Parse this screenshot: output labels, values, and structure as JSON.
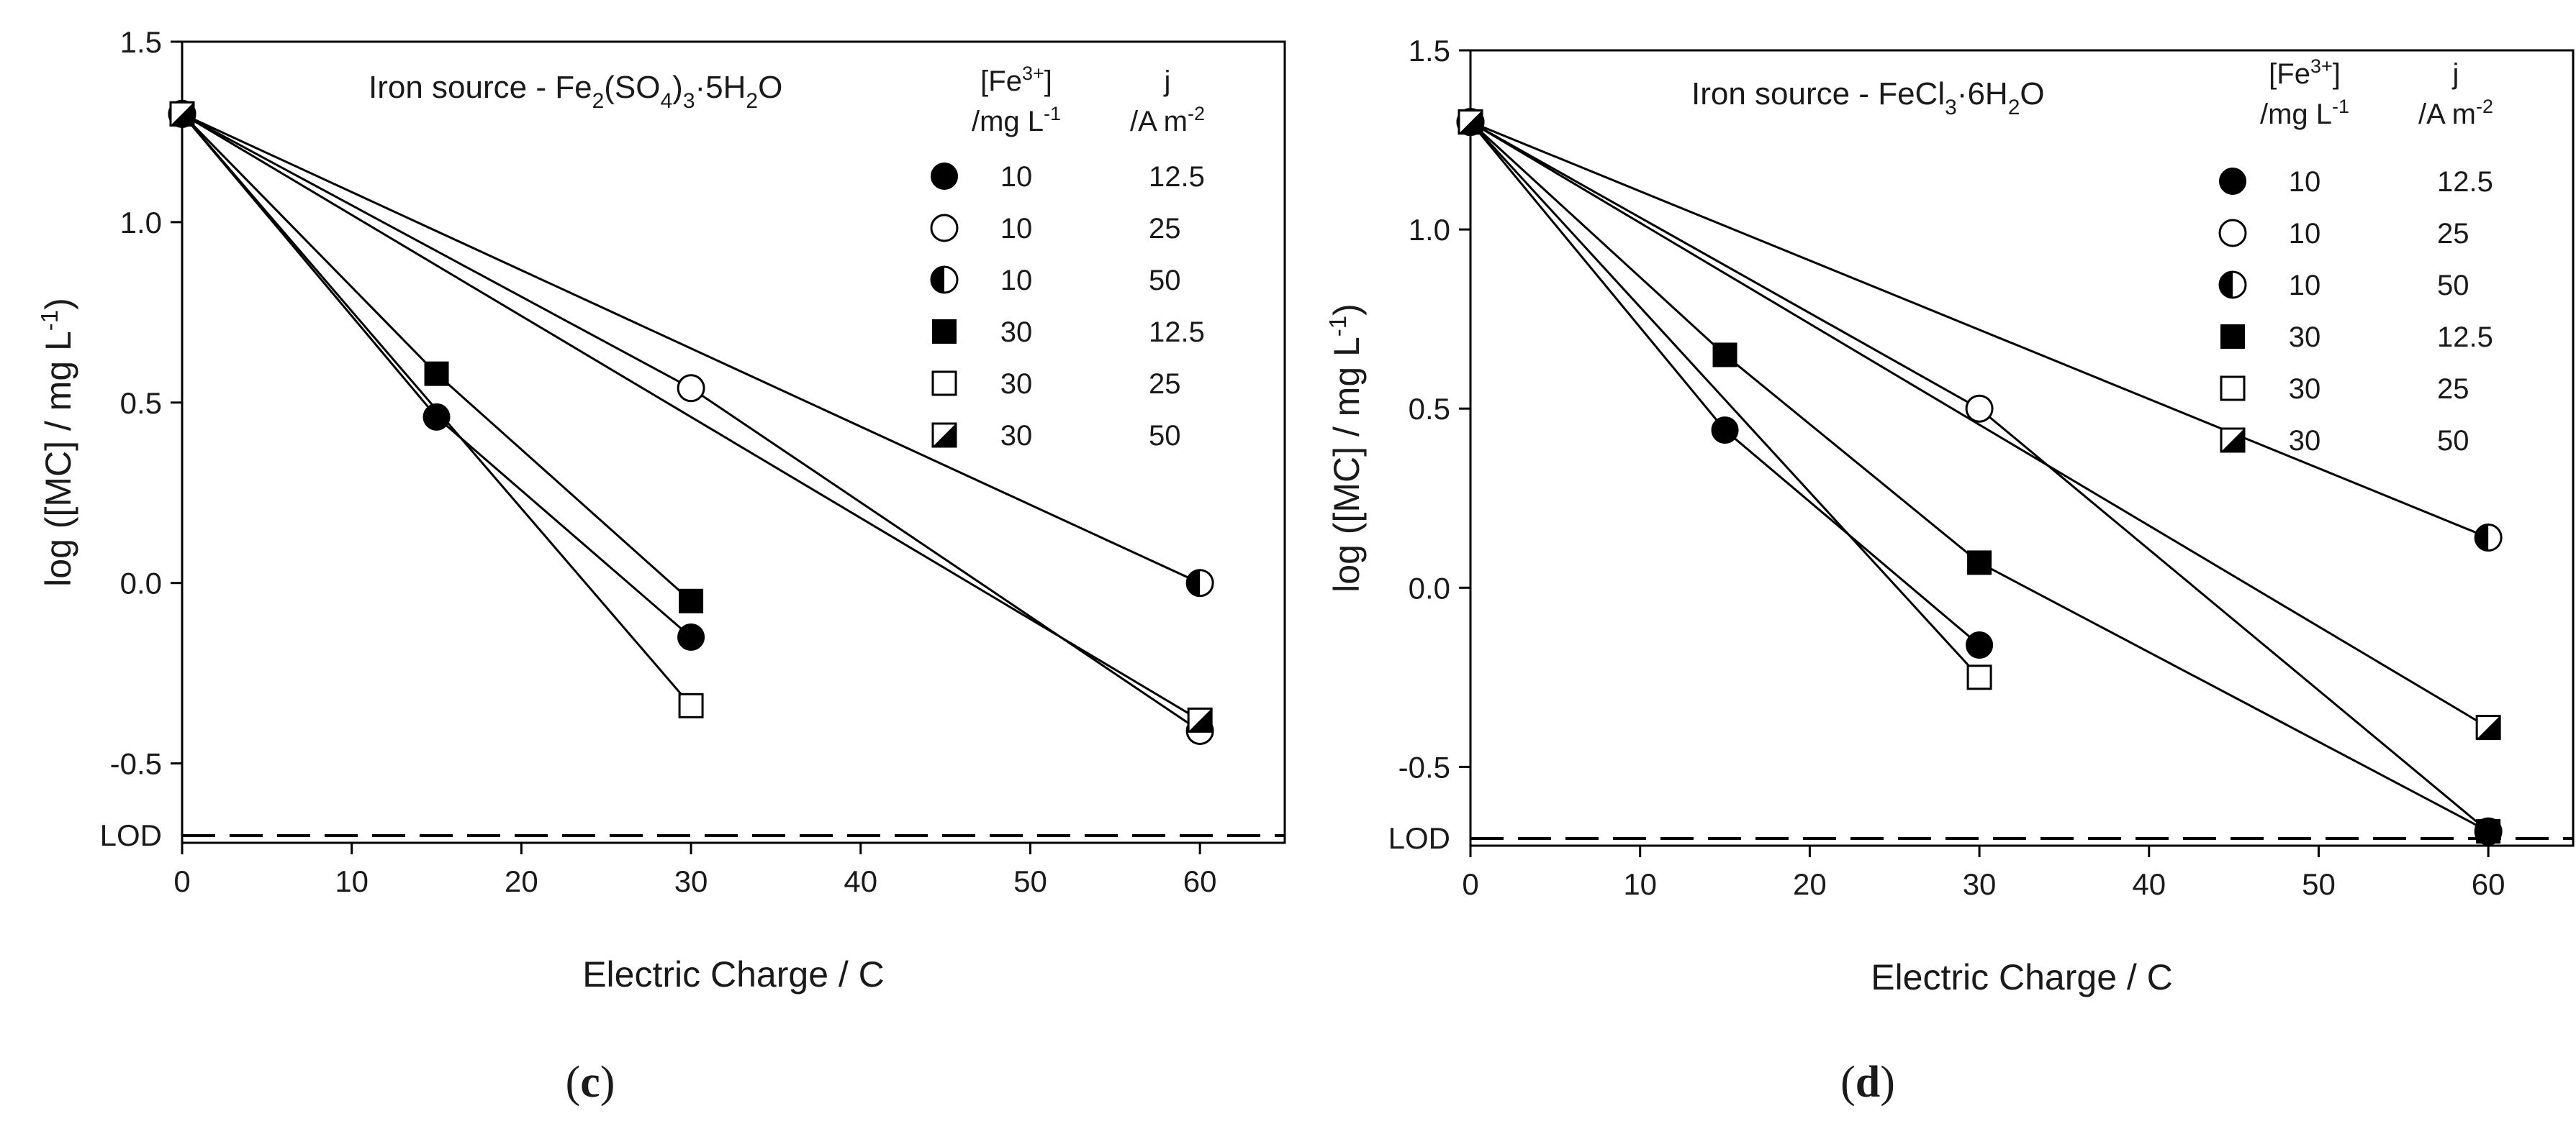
{
  "chart_data": [
    {
      "type": "line",
      "panel_label": "c",
      "title": {
        "prefix": "Iron source - Fe",
        "s1": "2",
        "mid1": "(SO",
        "s2": "4",
        "mid2": ")",
        "s3": "3",
        "dot": "·",
        "mid3": "5H",
        "s4": "2",
        "suffix": "O"
      },
      "xlabel": "Electric Charge / C",
      "ylabel": {
        "main": "log ([MC] / mg L",
        "sup": "-1",
        "end": ")"
      },
      "xlim": [
        0,
        65
      ],
      "ylim": [
        -0.72,
        1.5
      ],
      "xticks": [
        0,
        10,
        20,
        30,
        40,
        50,
        60
      ],
      "yticks": [
        1.5,
        1.0,
        0.5,
        0.0,
        -0.5
      ],
      "ytick_labels": [
        "1.5",
        "1.0",
        "0.5",
        "0.0",
        "-0.5"
      ],
      "lod": {
        "label": "LOD",
        "value": -0.7
      },
      "legend": {
        "header1": {
          "open": "[Fe",
          "sup": "3+",
          "close": "]"
        },
        "header1_line2": {
          "main": "/mg L",
          "sup": "-1"
        },
        "header2": "j",
        "header2_line2": {
          "main": "/A m",
          "sup": "-2"
        }
      },
      "series": [
        {
          "marker": "filled-circle",
          "fe": "10",
          "j": "12.5",
          "x": [
            0,
            15,
            30
          ],
          "y": [
            1.3,
            0.46,
            -0.15
          ]
        },
        {
          "marker": "open-circle",
          "fe": "10",
          "j": "25",
          "x": [
            0,
            30,
            60
          ],
          "y": [
            1.3,
            0.54,
            -0.41
          ]
        },
        {
          "marker": "half-circle",
          "fe": "10",
          "j": "50",
          "x": [
            0,
            60
          ],
          "y": [
            1.3,
            0.0
          ]
        },
        {
          "marker": "filled-square",
          "fe": "30",
          "j": "12.5",
          "x": [
            0,
            15,
            30
          ],
          "y": [
            1.3,
            0.58,
            -0.05
          ]
        },
        {
          "marker": "open-square",
          "fe": "30",
          "j": "25",
          "x": [
            0,
            30
          ],
          "y": [
            1.3,
            -0.34
          ]
        },
        {
          "marker": "half-square",
          "fe": "30",
          "j": "50",
          "x": [
            0,
            60
          ],
          "y": [
            1.3,
            -0.38
          ]
        }
      ]
    },
    {
      "type": "line",
      "panel_label": "d",
      "title": {
        "prefix": "Iron source - FeCl",
        "s1": "3",
        "dot": "·",
        "mid1": "6H",
        "s2": "2",
        "suffix": "O"
      },
      "xlabel": "Electric Charge / C",
      "ylabel": {
        "main": "log ([MC] / mg L",
        "sup": "-1",
        "end": ")"
      },
      "xlim": [
        0,
        65
      ],
      "ylim": [
        -0.72,
        1.5
      ],
      "xticks": [
        0,
        10,
        20,
        30,
        40,
        50,
        60
      ],
      "yticks": [
        1.5,
        1.0,
        0.5,
        0.0,
        -0.5
      ],
      "ytick_labels": [
        "1.5",
        "1.0",
        "0.5",
        "0.0",
        "-0.5"
      ],
      "lod": {
        "label": "LOD",
        "value": -0.7
      },
      "legend": {
        "header1": {
          "open": "[Fe",
          "sup": "3+",
          "close": "]"
        },
        "header1_line2": {
          "main": "/mg L",
          "sup": "-1"
        },
        "header2": "j",
        "header2_line2": {
          "main": "/A m",
          "sup": "-2"
        }
      },
      "series": [
        {
          "marker": "filled-circle",
          "fe": "10",
          "j": "12.5",
          "x": [
            0,
            15,
            30
          ],
          "y": [
            1.3,
            0.44,
            -0.16
          ]
        },
        {
          "marker": "open-circle",
          "fe": "10",
          "j": "25",
          "x": [
            0,
            30,
            60
          ],
          "y": [
            1.3,
            0.5,
            -0.68
          ]
        },
        {
          "marker": "half-circle",
          "fe": "10",
          "j": "50",
          "x": [
            0,
            60
          ],
          "y": [
            1.3,
            0.14
          ]
        },
        {
          "marker": "filled-square",
          "fe": "30",
          "j": "12.5",
          "x": [
            0,
            15,
            30,
            60
          ],
          "y": [
            1.3,
            0.65,
            0.07,
            -0.68
          ]
        },
        {
          "marker": "open-square",
          "fe": "30",
          "j": "25",
          "x": [
            0,
            30
          ],
          "y": [
            1.3,
            -0.25
          ]
        },
        {
          "marker": "half-square",
          "fe": "30",
          "j": "50",
          "x": [
            0,
            60
          ],
          "y": [
            1.3,
            -0.39
          ]
        }
      ]
    }
  ]
}
